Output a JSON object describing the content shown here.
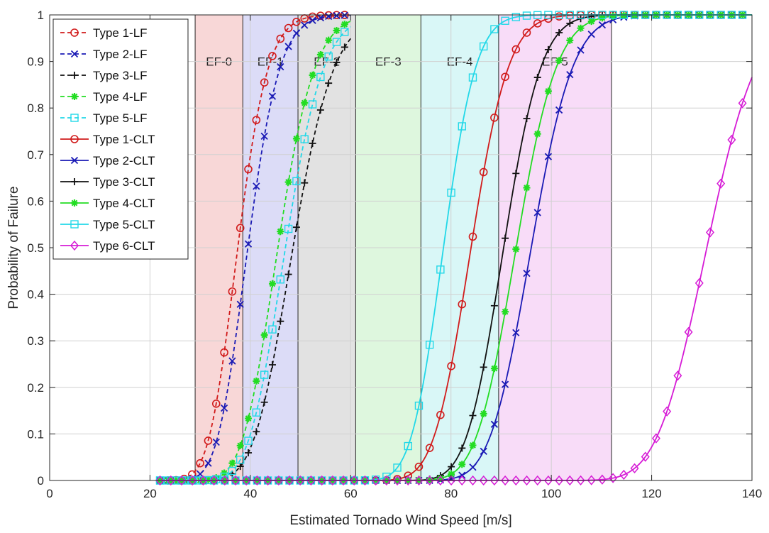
{
  "chart_data": {
    "type": "line",
    "title": "",
    "xlabel": "Estimated Tornado Wind Speed [m/s]",
    "ylabel": "Probability of Failure",
    "xlim": [
      0,
      140
    ],
    "ylim": [
      0,
      1
    ],
    "xticks": [
      0,
      20,
      40,
      60,
      80,
      100,
      120,
      140
    ],
    "yticks": [
      0,
      0.1,
      0.2,
      0.3,
      0.4,
      0.5,
      0.6,
      0.7,
      0.8,
      0.9,
      1
    ],
    "grid": true,
    "legend_position": "top-left",
    "ef_bands": [
      {
        "label": "EF-0",
        "from": 29,
        "to": 38.5,
        "color": "#f8d7d7"
      },
      {
        "label": "EF-1",
        "from": 38.5,
        "to": 49.5,
        "color": "#dcdcf7"
      },
      {
        "label": "EF-2",
        "from": 49.5,
        "to": 61,
        "color": "#e2e2e2"
      },
      {
        "label": "EF-3",
        "from": 61,
        "to": 74,
        "color": "#def7de"
      },
      {
        "label": "EF-4",
        "from": 74,
        "to": 89.5,
        "color": "#d9f7f7"
      },
      {
        "label": "EF-5",
        "from": 89.5,
        "to": 112,
        "color": "#f8dcf8"
      }
    ],
    "series": [
      {
        "name": "Type 1-LF",
        "color": "#d11b1b",
        "dash": "dashed",
        "marker": "circle",
        "median": 37.5,
        "beta": 0.125,
        "x_start": 22,
        "x_end": 60,
        "step": 1.6
      },
      {
        "name": "Type 2-LF",
        "color": "#1a1ab5",
        "dash": "dashed",
        "marker": "x",
        "median": 39.5,
        "beta": 0.125,
        "x_start": 22,
        "x_end": 60,
        "step": 1.6
      },
      {
        "name": "Type 3-LF",
        "color": "#111111",
        "dash": "dashed",
        "marker": "plus",
        "median": 48.5,
        "beta": 0.13,
        "x_start": 22,
        "x_end": 60,
        "step": 1.6
      },
      {
        "name": "Type 4-LF",
        "color": "#22dd22",
        "dash": "dashed",
        "marker": "asterisk",
        "median": 45.5,
        "beta": 0.125,
        "x_start": 22,
        "x_end": 60,
        "step": 1.6
      },
      {
        "name": "Type 5-LF",
        "color": "#22d8e8",
        "dash": "dashed",
        "marker": "square",
        "median": 47.0,
        "beta": 0.125,
        "x_start": 22,
        "x_end": 60,
        "step": 1.6
      },
      {
        "name": "Type 1-CLT",
        "color": "#d11b1b",
        "dash": "solid",
        "marker": "circle",
        "median": 84.0,
        "beta": 0.07,
        "x_start": 22,
        "x_end": 140,
        "step": 2.15
      },
      {
        "name": "Type 2-CLT",
        "color": "#1a1ab5",
        "dash": "solid",
        "marker": "x",
        "median": 96.0,
        "beta": 0.068,
        "x_start": 22,
        "x_end": 140,
        "step": 2.15
      },
      {
        "name": "Type 3-CLT",
        "color": "#111111",
        "dash": "solid",
        "marker": "plus",
        "median": 90.5,
        "beta": 0.065,
        "x_start": 22,
        "x_end": 140,
        "step": 2.15
      },
      {
        "name": "Type 4-CLT",
        "color": "#22dd22",
        "dash": "solid",
        "marker": "asterisk",
        "median": 93.0,
        "beta": 0.068,
        "x_start": 22,
        "x_end": 140,
        "step": 2.15
      },
      {
        "name": "Type 5-CLT",
        "color": "#22d8e8",
        "dash": "solid",
        "marker": "square",
        "median": 78.5,
        "beta": 0.065,
        "x_start": 22,
        "x_end": 140,
        "step": 2.15
      },
      {
        "name": "Type 6-CLT",
        "color": "#d61bd6",
        "dash": "solid",
        "marker": "diamond",
        "median": 131.0,
        "beta": 0.06,
        "x_start": 22,
        "x_end": 140,
        "step": 2.15
      }
    ]
  }
}
